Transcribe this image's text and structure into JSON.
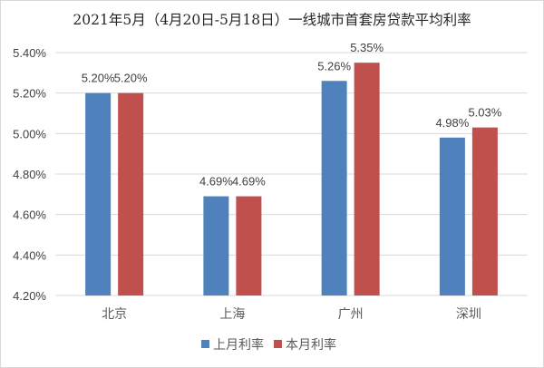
{
  "chart_data": {
    "type": "bar",
    "title": "2021年5月（4月20日-5月18日）一线城市首套房贷款平均利率",
    "categories": [
      "北京",
      "上海",
      "广州",
      "深圳"
    ],
    "series": [
      {
        "name": "上月利率",
        "values": [
          5.2,
          4.69,
          5.26,
          4.98
        ],
        "labels": [
          "5.20%",
          "4.69%",
          "5.26%",
          "4.98%"
        ],
        "color": "#4f81bd"
      },
      {
        "name": "本月利率",
        "values": [
          5.2,
          4.69,
          5.35,
          5.03
        ],
        "labels": [
          "5.20%",
          "4.69%",
          "5.35%",
          "5.03%"
        ],
        "color": "#c0504d"
      }
    ],
    "ylim": [
      4.2,
      5.4
    ],
    "yticks": [
      "4.20%",
      "4.40%",
      "4.60%",
      "4.80%",
      "5.00%",
      "5.20%",
      "5.40%"
    ],
    "ytick_values": [
      4.2,
      4.4,
      4.6,
      4.8,
      5.0,
      5.2,
      5.4
    ],
    "grid": true,
    "legend": "bottom",
    "xlabel": "",
    "ylabel": ""
  }
}
